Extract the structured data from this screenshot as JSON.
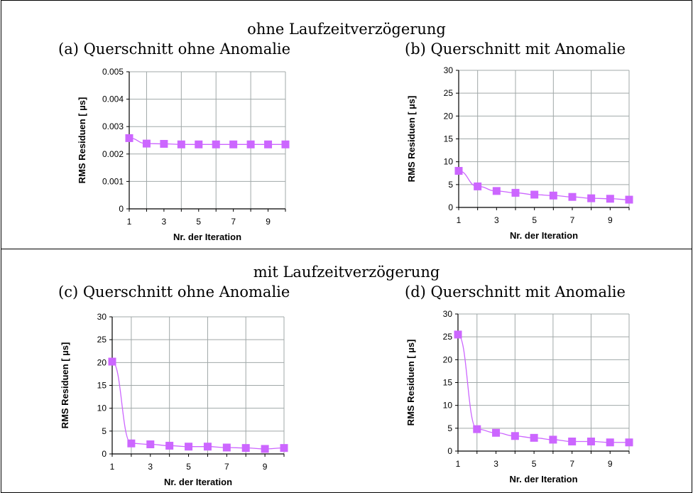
{
  "sections": [
    {
      "title": "ohne Laufzeitverzögerung"
    },
    {
      "title": "mit Laufzeitverzögerung"
    }
  ],
  "panels": [
    {
      "caption": "(a) Querschnitt ohne Anomalie"
    },
    {
      "caption": "(b) Querschnitt mit Anomalie"
    },
    {
      "caption": "(c) Querschnitt ohne Anomalie"
    },
    {
      "caption": "(d) Querschnitt mit Anomalie"
    }
  ],
  "colors": {
    "series": "#cc66ff",
    "grid": "#a0a8a8",
    "axis": "#000000"
  },
  "chart_data": [
    {
      "type": "line",
      "xlabel": "Nr. der Iteration",
      "ylabel": "RMS Residuen [ µs]",
      "xlim": [
        1,
        10
      ],
      "ylim": [
        0,
        0.005
      ],
      "xticks": [
        "1",
        "3",
        "5",
        "7",
        "9"
      ],
      "yticks": [
        "0",
        "0.001",
        "0.002",
        "0.003",
        "0.004",
        "0.005"
      ],
      "grid": true,
      "x": [
        1,
        2,
        3,
        4,
        5,
        6,
        7,
        8,
        9,
        10
      ],
      "values": [
        0.00258,
        0.00238,
        0.00237,
        0.00235,
        0.00235,
        0.00235,
        0.00235,
        0.00235,
        0.00235,
        0.00235
      ]
    },
    {
      "type": "line",
      "xlabel": "Nr. der Iteration",
      "ylabel": "RMS Residuen [ µs]",
      "xlim": [
        1,
        10
      ],
      "ylim": [
        0,
        30
      ],
      "xticks": [
        "1",
        "3",
        "5",
        "7",
        "9"
      ],
      "yticks": [
        "0",
        "5",
        "10",
        "15",
        "20",
        "25",
        "30"
      ],
      "grid": true,
      "x": [
        1,
        2,
        3,
        4,
        5,
        6,
        7,
        8,
        9,
        10
      ],
      "values": [
        8.0,
        4.6,
        3.6,
        3.2,
        2.8,
        2.6,
        2.3,
        2.0,
        1.9,
        1.7
      ]
    },
    {
      "type": "line",
      "xlabel": "Nr. der Iteration",
      "ylabel": "RMS Residuen [ µs]",
      "xlim": [
        1,
        10
      ],
      "ylim": [
        0,
        30
      ],
      "xticks": [
        "1",
        "3",
        "5",
        "7",
        "9"
      ],
      "yticks": [
        "0",
        "5",
        "10",
        "15",
        "20",
        "25",
        "30"
      ],
      "grid": true,
      "x": [
        1,
        2,
        3,
        4,
        5,
        6,
        7,
        8,
        9,
        10
      ],
      "values": [
        20.2,
        2.3,
        2.1,
        1.8,
        1.6,
        1.6,
        1.4,
        1.3,
        1.1,
        1.3
      ]
    },
    {
      "type": "line",
      "xlabel": "Nr. der Iteration",
      "ylabel": "RMS Residuen [ µs]",
      "xlim": [
        1,
        10
      ],
      "ylim": [
        0,
        30
      ],
      "xticks": [
        "1",
        "3",
        "5",
        "7",
        "9"
      ],
      "yticks": [
        "0",
        "5",
        "10",
        "15",
        "20",
        "25",
        "30"
      ],
      "grid": true,
      "x": [
        1,
        2,
        3,
        4,
        5,
        6,
        7,
        8,
        9,
        10
      ],
      "values": [
        25.5,
        4.8,
        4.0,
        3.3,
        2.9,
        2.5,
        2.1,
        2.1,
        1.9,
        1.9
      ]
    }
  ]
}
